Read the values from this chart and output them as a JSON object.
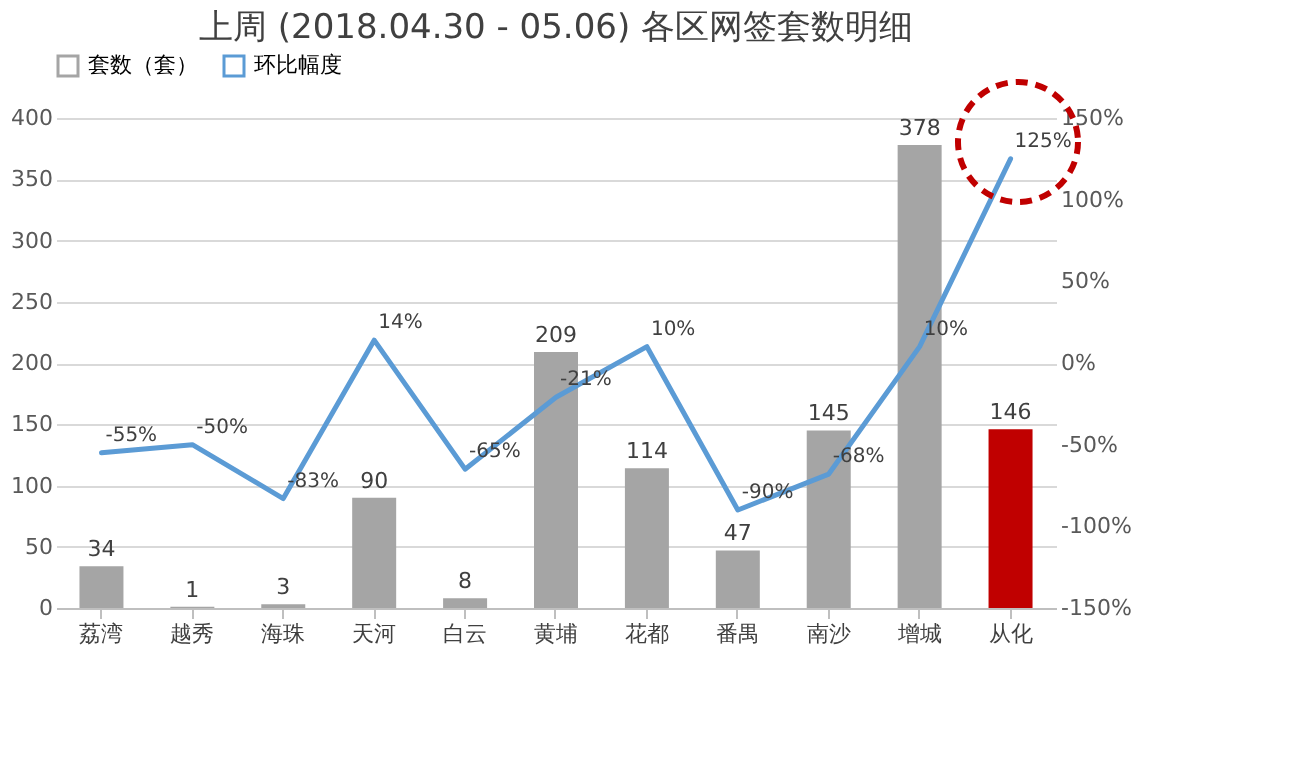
{
  "chart_data": {
    "type": "bar",
    "title": "上周 (2018.04.30 - 05.06) 各区网签套数明细",
    "categories": [
      "荔湾",
      "越秀",
      "海珠",
      "天河",
      "白云",
      "黄埔",
      "花都",
      "番禺",
      "南沙",
      "增城",
      "从化"
    ],
    "series": [
      {
        "name": "套数（套）",
        "color": "#a5a5a5",
        "colors": [
          "#a5a5a5",
          "#a5a5a5",
          "#a5a5a5",
          "#a5a5a5",
          "#a5a5a5",
          "#a5a5a5",
          "#a5a5a5",
          "#a5a5a5",
          "#a5a5a5",
          "#a5a5a5",
          "#c00000"
        ],
        "values": [
          34,
          1,
          3,
          90,
          8,
          209,
          114,
          47,
          145,
          378,
          146
        ],
        "data_labels": true
      },
      {
        "name": "环比幅度",
        "type": "line",
        "axis": "y2",
        "color": "#5b9bd5",
        "values": [
          -55,
          -50,
          -83,
          14,
          -65,
          -21,
          10,
          -90,
          -68,
          10,
          125
        ],
        "value_labels": [
          "-55%",
          "-50%",
          "-83%",
          "14%",
          "-65%",
          "-21%",
          "10%",
          "-90%",
          "-68%",
          "10%",
          "125%"
        ]
      }
    ],
    "ylim": [
      0,
      400
    ],
    "yticks": [
      0,
      50,
      100,
      150,
      200,
      250,
      300,
      350,
      400
    ],
    "y2lim": [
      -150,
      150
    ],
    "y2ticks": [
      {
        "value": -150,
        "label": "-150%"
      },
      {
        "value": -100,
        "label": "-100%"
      },
      {
        "value": -50,
        "label": "-50%"
      },
      {
        "value": 0,
        "label": "0%"
      },
      {
        "value": 50,
        "label": "50%"
      },
      {
        "value": 100,
        "label": "100%"
      },
      {
        "value": 150,
        "label": "150%"
      }
    ],
    "grid": "y",
    "legend": "top"
  }
}
